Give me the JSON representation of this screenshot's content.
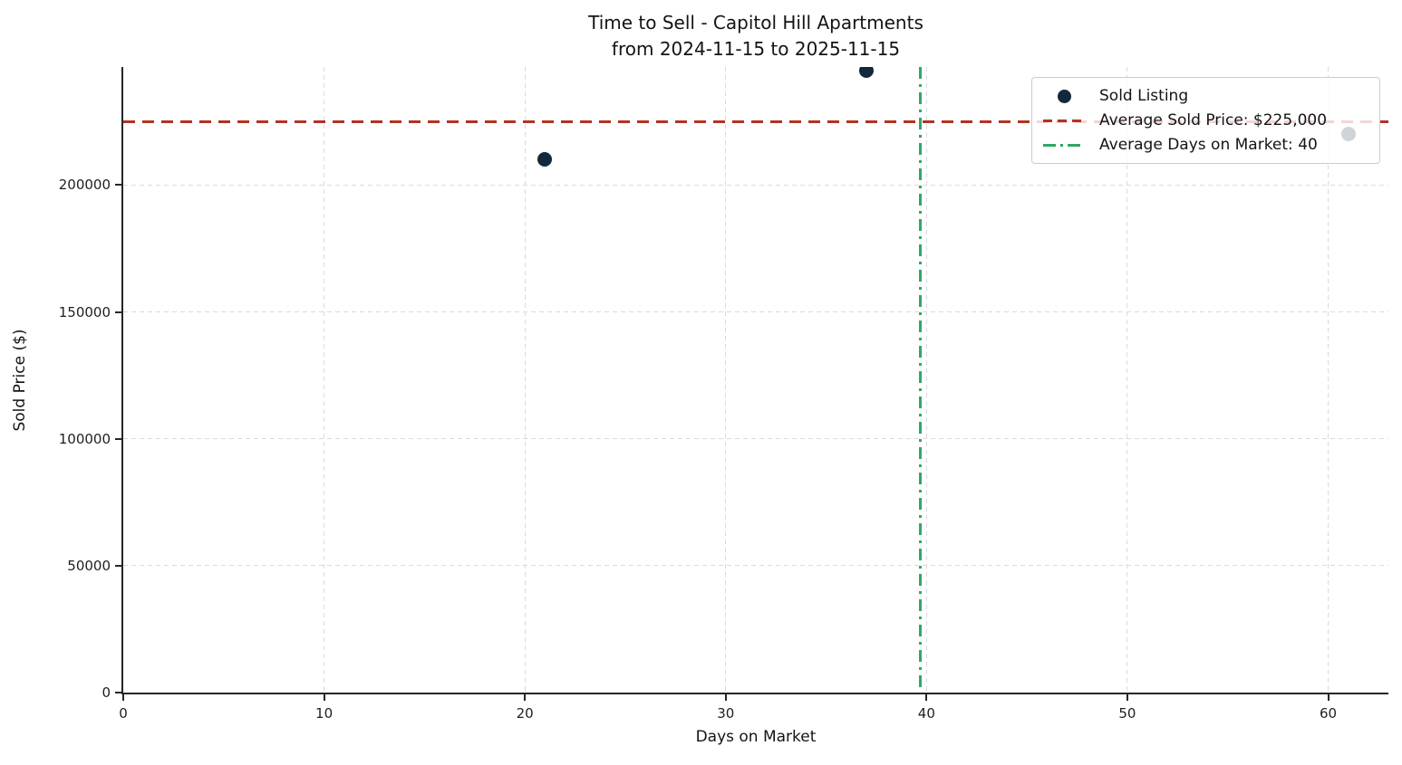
{
  "chart_data": {
    "type": "scatter",
    "title": "Time to Sell - Capitol Hill Apartments",
    "subtitle": "from 2024-11-15 to 2025-11-15",
    "xlabel": "Days on Market",
    "ylabel": "Sold Price ($)",
    "xlim": [
      0,
      63
    ],
    "ylim": [
      0,
      246500
    ],
    "xticks": [
      0,
      10,
      20,
      30,
      40,
      50,
      60
    ],
    "yticks": [
      0,
      50000,
      100000,
      150000,
      200000
    ],
    "grid": true,
    "legend_position": "upper right",
    "series": [
      {
        "name": "Sold Listing",
        "type": "scatter",
        "color": "#12293d",
        "points": [
          {
            "x": 21,
            "y": 210000
          },
          {
            "x": 37,
            "y": 245000
          },
          {
            "x": 61,
            "y": 220000
          }
        ]
      }
    ],
    "reference_lines": [
      {
        "name": "average-sold-price",
        "orientation": "horizontal",
        "value": 225000,
        "style": "dashed",
        "color": "#b23222",
        "label": "Average Sold Price: $225,000"
      },
      {
        "name": "average-days-on-market",
        "orientation": "vertical",
        "value": 39.67,
        "style": "dashdot",
        "color": "#2fa863",
        "label": "Average Days on Market: 40"
      }
    ],
    "legend": {
      "items": [
        {
          "label": "Sold Listing",
          "marker": "dot"
        },
        {
          "label": "Average Sold Price: $225,000",
          "marker": "dashed-line"
        },
        {
          "label": "Average Days on Market: 40",
          "marker": "dashdot-line"
        }
      ]
    },
    "colors": {
      "point": "#12293d",
      "avg_price_line": "#b23222",
      "avg_days_line": "#2fa863",
      "grid": "#dadada",
      "spine": "#262626",
      "text": "#141414"
    }
  }
}
